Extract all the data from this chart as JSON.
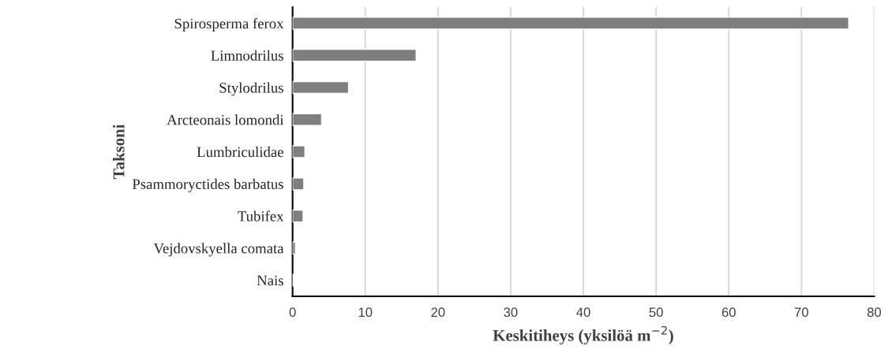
{
  "chart_data": {
    "type": "bar",
    "orientation": "horizontal",
    "categories": [
      "Spirosperma ferox",
      "Limnodrilus",
      "Stylodrilus",
      "Arcteonais lomondi",
      "Lumbriculidae",
      "Psammoryctides barbatus",
      "Tubifex",
      "Vejdovskyella comata",
      "Nais"
    ],
    "values": [
      76.5,
      17.0,
      7.7,
      4.0,
      1.7,
      1.55,
      1.45,
      0.4,
      0.15
    ],
    "color": "#7f7f7f",
    "xlim": [
      0,
      80
    ],
    "xticks": [
      0,
      10,
      20,
      30,
      40,
      50,
      60,
      70,
      80
    ],
    "xlabel": "Keskitiheys (yksilöä m$^{−2}$)",
    "ylabel": "Taksoni",
    "grid": "x",
    "legend": false
  }
}
